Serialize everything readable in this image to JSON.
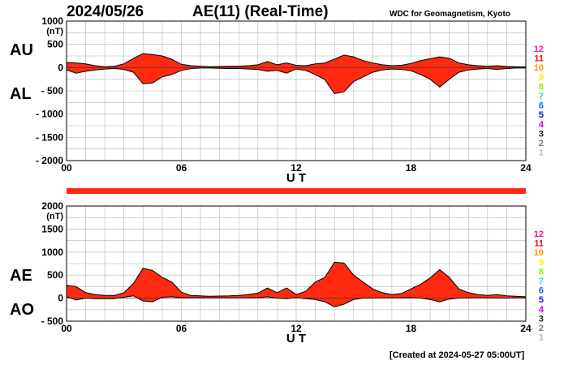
{
  "header": {
    "date": "2024/05/26",
    "title": "AE(11) (Real-Time)",
    "source": "WDC for Geomagnetism, Kyoto"
  },
  "footer": {
    "created": "[Created at 2024-05-27 05:00UT]"
  },
  "colors": {
    "fill": "#ff2a10",
    "line": "#000000",
    "grid": "#b4b4b4",
    "band": "#ff2a10"
  },
  "station_legend": [
    {
      "label": "12",
      "color": "#ff1493"
    },
    {
      "label": "11",
      "color": "#ee1111"
    },
    {
      "label": "10",
      "color": "#ff9900"
    },
    {
      "label": "9",
      "color": "#ffee00"
    },
    {
      "label": "8",
      "color": "#99ee00"
    },
    {
      "label": "7",
      "color": "#22ddee"
    },
    {
      "label": "6",
      "color": "#1166ee"
    },
    {
      "label": "5",
      "color": "#2211cc"
    },
    {
      "label": "4",
      "color": "#cc00dd"
    },
    {
      "label": "3",
      "color": "#111111"
    },
    {
      "label": "2",
      "color": "#777777"
    },
    {
      "label": "1",
      "color": "#bbbbbb"
    }
  ],
  "chart_data": [
    {
      "type": "area",
      "id": "au-al",
      "label_upper": "AU",
      "label_lower": "AL",
      "unit": "(nT)",
      "xlabel": "U T",
      "ylim": [
        -2000,
        1000
      ],
      "xlim": [
        0,
        24
      ],
      "yticks": [
        1000,
        500,
        0,
        -500,
        -1000,
        -1500,
        -2000
      ],
      "ytick_labels": [
        "1000",
        "500",
        "0",
        "- 500",
        "- 1000",
        "- 1500",
        "- 2000"
      ],
      "xticks": [
        0,
        6,
        12,
        18,
        24
      ],
      "xtick_labels": [
        "00",
        "06",
        "12",
        "18",
        "24"
      ],
      "x": [
        0,
        0.5,
        1,
        1.5,
        2,
        2.5,
        3,
        3.5,
        4,
        4.5,
        5,
        5.5,
        6,
        6.5,
        7,
        7.5,
        8,
        8.5,
        9,
        9.5,
        10,
        10.5,
        11,
        11.5,
        12,
        12.5,
        13,
        13.5,
        14,
        14.5,
        15,
        15.5,
        16,
        16.5,
        17,
        17.5,
        18,
        18.5,
        19,
        19.5,
        20,
        20.5,
        21,
        21.5,
        22,
        22.5,
        23,
        23.5,
        24
      ],
      "upper": [
        110,
        100,
        80,
        40,
        20,
        30,
        80,
        200,
        300,
        280,
        250,
        180,
        70,
        40,
        30,
        20,
        25,
        30,
        30,
        40,
        60,
        130,
        60,
        100,
        50,
        40,
        80,
        100,
        180,
        270,
        230,
        150,
        100,
        60,
        40,
        50,
        90,
        150,
        190,
        230,
        200,
        100,
        60,
        40,
        30,
        40,
        25,
        20,
        15
      ],
      "lower": [
        -50,
        -120,
        -80,
        -50,
        -30,
        -20,
        -40,
        -100,
        -350,
        -330,
        -200,
        -150,
        -60,
        -20,
        -10,
        -10,
        -15,
        -20,
        -20,
        -30,
        -40,
        -80,
        -60,
        -120,
        -30,
        -60,
        -150,
        -260,
        -560,
        -520,
        -300,
        -200,
        -100,
        -50,
        -30,
        -40,
        -70,
        -150,
        -250,
        -420,
        -250,
        -100,
        -50,
        -30,
        -20,
        -40,
        -20,
        -10,
        -10
      ]
    },
    {
      "type": "area",
      "id": "ae-ao",
      "label_upper": "AE",
      "label_lower": "AO",
      "unit": "(nT)",
      "xlabel": "U T",
      "ylim": [
        -500,
        2000
      ],
      "xlim": [
        0,
        24
      ],
      "yticks": [
        2000,
        1500,
        1000,
        500,
        0,
        -500
      ],
      "ytick_labels": [
        "2000",
        "1500",
        "1000",
        "500",
        "0",
        "- 500"
      ],
      "xticks": [
        0,
        6,
        12,
        18,
        24
      ],
      "xtick_labels": [
        "00",
        "06",
        "12",
        "18",
        "24"
      ],
      "x": [
        0,
        0.5,
        1,
        1.5,
        2,
        2.5,
        3,
        3.5,
        4,
        4.5,
        5,
        5.5,
        6,
        6.5,
        7,
        7.5,
        8,
        8.5,
        9,
        9.5,
        10,
        10.5,
        11,
        11.5,
        12,
        12.5,
        13,
        13.5,
        14,
        14.5,
        15,
        15.5,
        16,
        16.5,
        17,
        17.5,
        18,
        18.5,
        19,
        19.5,
        20,
        20.5,
        21,
        21.5,
        22,
        22.5,
        23,
        23.5,
        24
      ],
      "upper": [
        280,
        250,
        120,
        80,
        60,
        60,
        120,
        320,
        650,
        600,
        450,
        350,
        130,
        60,
        50,
        40,
        45,
        50,
        60,
        80,
        110,
        220,
        120,
        220,
        80,
        150,
        350,
        450,
        780,
        760,
        500,
        350,
        200,
        120,
        80,
        100,
        200,
        300,
        440,
        620,
        450,
        200,
        120,
        80,
        60,
        80,
        50,
        40,
        30
      ],
      "lower": [
        30,
        -40,
        0,
        -10,
        -10,
        -10,
        20,
        50,
        -60,
        -80,
        20,
        30,
        10,
        10,
        10,
        5,
        5,
        5,
        5,
        5,
        10,
        30,
        0,
        -10,
        10,
        -10,
        -30,
        -80,
        -190,
        -130,
        -30,
        0,
        0,
        5,
        5,
        5,
        10,
        0,
        -30,
        -80,
        -20,
        0,
        5,
        5,
        5,
        0,
        0,
        5,
        5
      ]
    }
  ]
}
